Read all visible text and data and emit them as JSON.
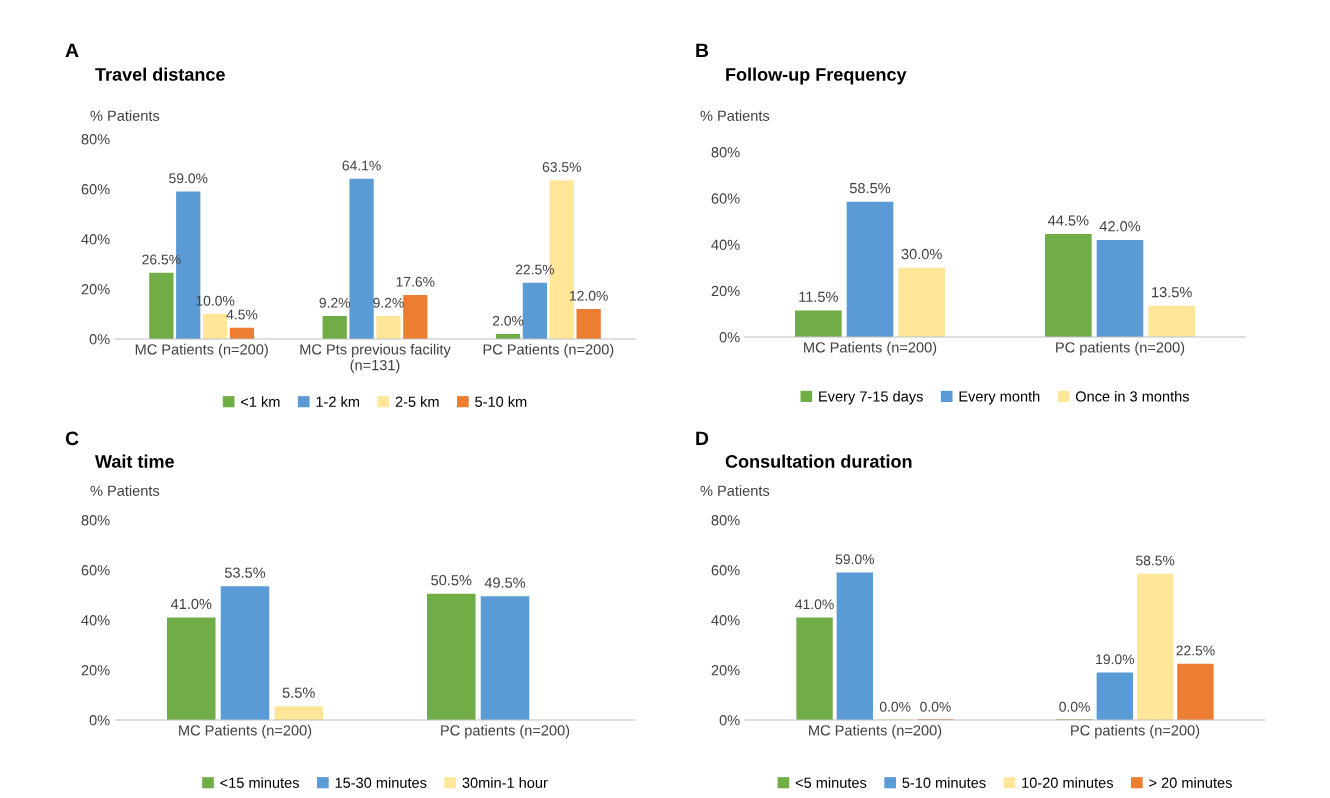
{
  "chart_data": [
    {
      "type": "bar",
      "title": "Travel distance",
      "ylabel": "% Patients",
      "annotations": [
        "A"
      ],
      "categories": [
        "MC Patients (n=200)",
        "MC Pts previous facility\n(n=131)",
        "PC Patients (n=200)"
      ],
      "ylim": [
        0,
        80
      ],
      "yticks": [
        {
          "value": 0,
          "label": "0%"
        },
        {
          "value": 20,
          "label": "20%"
        },
        {
          "value": 40,
          "label": "40%"
        },
        {
          "value": 60,
          "label": "60%"
        },
        {
          "value": 80,
          "label": "80%"
        }
      ],
      "grid": false,
      "legend": "bottom",
      "series": [
        {
          "name": "<1 km",
          "color": "#70ad47",
          "values": [
            26.5,
            9.2,
            2.0
          ],
          "value_labels": [
            "26.5%",
            "9.2%",
            "2.0%"
          ]
        },
        {
          "name": "1-2 km",
          "color": "#5b9bd5",
          "values": [
            59.0,
            64.1,
            22.5
          ],
          "value_labels": [
            "59.0%",
            "64.1%",
            "22.5%"
          ]
        },
        {
          "name": "2-5 km",
          "color": "#ffe699",
          "values": [
            10.0,
            9.2,
            63.5
          ],
          "value_labels": [
            "10.0%",
            "9.2%",
            "63.5%"
          ]
        },
        {
          "name": "5-10 km",
          "color": "#ed7d31",
          "values": [
            4.5,
            17.6,
            12.0
          ],
          "value_labels": [
            "4.5%",
            "17.6%",
            "12.0%"
          ]
        }
      ]
    },
    {
      "type": "bar",
      "title": "Follow-up Frequency",
      "ylabel": "% Patients",
      "annotations": [
        "B"
      ],
      "categories": [
        "MC Patients (n=200)",
        "PC patients (n=200)"
      ],
      "ylim": [
        0,
        80
      ],
      "yticks": [
        {
          "value": 0,
          "label": "0%"
        },
        {
          "value": 20,
          "label": "20%"
        },
        {
          "value": 40,
          "label": "40%"
        },
        {
          "value": 60,
          "label": "60%"
        },
        {
          "value": 80,
          "label": "80%"
        }
      ],
      "grid": false,
      "legend": "bottom",
      "series": [
        {
          "name": "Every 7-15 days",
          "color": "#70ad47",
          "values": [
            11.5,
            44.5
          ],
          "value_labels": [
            "11.5%",
            "44.5%"
          ]
        },
        {
          "name": "Every month",
          "color": "#5b9bd5",
          "values": [
            58.5,
            42.0
          ],
          "value_labels": [
            "58.5%",
            "42.0%"
          ]
        },
        {
          "name": "Once in 3 months",
          "color": "#ffe699",
          "values": [
            30.0,
            13.5
          ],
          "value_labels": [
            "30.0%",
            "13.5%"
          ]
        }
      ]
    },
    {
      "type": "bar",
      "title": "Wait time",
      "ylabel": "% Patients",
      "annotations": [
        "C"
      ],
      "categories": [
        "MC Patients (n=200)",
        "PC patients (n=200)"
      ],
      "ylim": [
        0,
        80
      ],
      "yticks": [
        {
          "value": 0,
          "label": "0%"
        },
        {
          "value": 20,
          "label": "20%"
        },
        {
          "value": 40,
          "label": "40%"
        },
        {
          "value": 60,
          "label": "60%"
        },
        {
          "value": 80,
          "label": "80%"
        }
      ],
      "grid": false,
      "legend": "bottom",
      "series": [
        {
          "name": "<15 minutes",
          "color": "#70ad47",
          "values": [
            41.0,
            50.5
          ],
          "value_labels": [
            "41.0%",
            "50.5%"
          ]
        },
        {
          "name": "15-30 minutes",
          "color": "#5b9bd5",
          "values": [
            53.5,
            49.5
          ],
          "value_labels": [
            "53.5%",
            "49.5%"
          ]
        },
        {
          "name": "30min-1 hour",
          "color": "#ffe699",
          "values": [
            5.5,
            null
          ],
          "value_labels": [
            "5.5%",
            null
          ]
        }
      ]
    },
    {
      "type": "bar",
      "title": "Consultation duration",
      "ylabel": "% Patients",
      "annotations": [
        "D"
      ],
      "categories": [
        "MC Patients (n=200)",
        "PC patients (n=200)"
      ],
      "ylim": [
        0,
        80
      ],
      "yticks": [
        {
          "value": 0,
          "label": "0%"
        },
        {
          "value": 20,
          "label": "20%"
        },
        {
          "value": 40,
          "label": "40%"
        },
        {
          "value": 60,
          "label": "60%"
        },
        {
          "value": 80,
          "label": "80%"
        }
      ],
      "grid": false,
      "legend": "bottom",
      "series": [
        {
          "name": "<5 minutes",
          "color": "#70ad47",
          "values": [
            41.0,
            0.0
          ],
          "value_labels": [
            "41.0%",
            "0.0%"
          ]
        },
        {
          "name": "5-10 minutes",
          "color": "#5b9bd5",
          "values": [
            59.0,
            19.0
          ],
          "value_labels": [
            "59.0%",
            "19.0%"
          ]
        },
        {
          "name": "10-20 minutes",
          "color": "#ffe699",
          "values": [
            0.0,
            58.5
          ],
          "value_labels": [
            "0.0%",
            "58.5%"
          ]
        },
        {
          "name": "> 20 minutes",
          "color": "#ed7d31",
          "values": [
            0.0,
            22.5
          ],
          "value_labels": [
            "0.0%",
            "22.5%"
          ]
        }
      ]
    }
  ]
}
